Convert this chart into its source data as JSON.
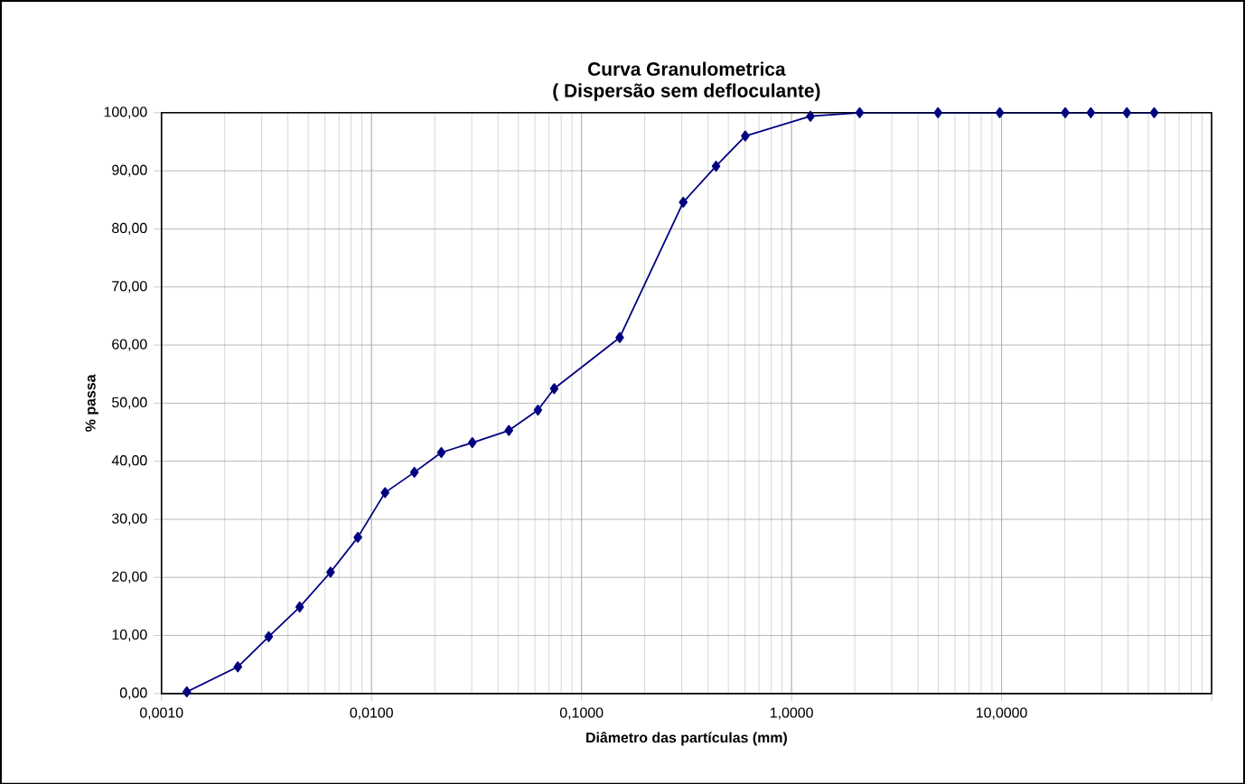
{
  "chart_data": {
    "type": "line",
    "title": "Curva Granulometrica",
    "subtitle": "( Dispersão sem defloculante)",
    "xlabel": "Diâmetro das partículas (mm)",
    "ylabel": "% passa",
    "log": "x",
    "grid": true,
    "marker": "diamond",
    "line_style": "solid",
    "xlim": [
      0.001,
      100
    ],
    "ylim": [
      0,
      100
    ],
    "xticks": [
      {
        "value": 0.001,
        "label": "0,0010"
      },
      {
        "value": 0.01,
        "label": "0,0100"
      },
      {
        "value": 0.1,
        "label": "0,1000"
      },
      {
        "value": 1,
        "label": "1,0000"
      },
      {
        "value": 10,
        "label": "10,0000"
      },
      {
        "value": 100,
        "label": null
      }
    ],
    "yticks": [
      {
        "value": 0,
        "label": "0,00"
      },
      {
        "value": 10,
        "label": "10,00"
      },
      {
        "value": 20,
        "label": "20,00"
      },
      {
        "value": 30,
        "label": "30,00"
      },
      {
        "value": 40,
        "label": "40,00"
      },
      {
        "value": 50,
        "label": "50,00"
      },
      {
        "value": 60,
        "label": "60,00"
      },
      {
        "value": 70,
        "label": "70,00"
      },
      {
        "value": 80,
        "label": "80,00"
      },
      {
        "value": 90,
        "label": "90,00"
      },
      {
        "value": 100,
        "label": "100,00"
      }
    ],
    "x": [
      0.00132,
      0.00231,
      0.00324,
      0.00455,
      0.00638,
      0.00861,
      0.0116,
      0.016,
      0.0215,
      0.0302,
      0.0451,
      0.062,
      0.0741,
      0.152,
      0.305,
      0.437,
      0.602,
      1.23,
      2.11,
      4.98,
      9.8,
      20.1,
      26.6,
      39.5,
      53.3
    ],
    "series": [
      {
        "color": "#000080",
        "values": [
          0.3,
          4.6,
          9.8,
          14.9,
          20.9,
          26.9,
          34.6,
          38.1,
          41.5,
          43.2,
          45.3,
          48.8,
          52.5,
          61.3,
          84.6,
          90.8,
          96.0,
          99.4,
          100,
          100,
          100,
          100,
          100,
          100,
          100
        ]
      }
    ]
  }
}
